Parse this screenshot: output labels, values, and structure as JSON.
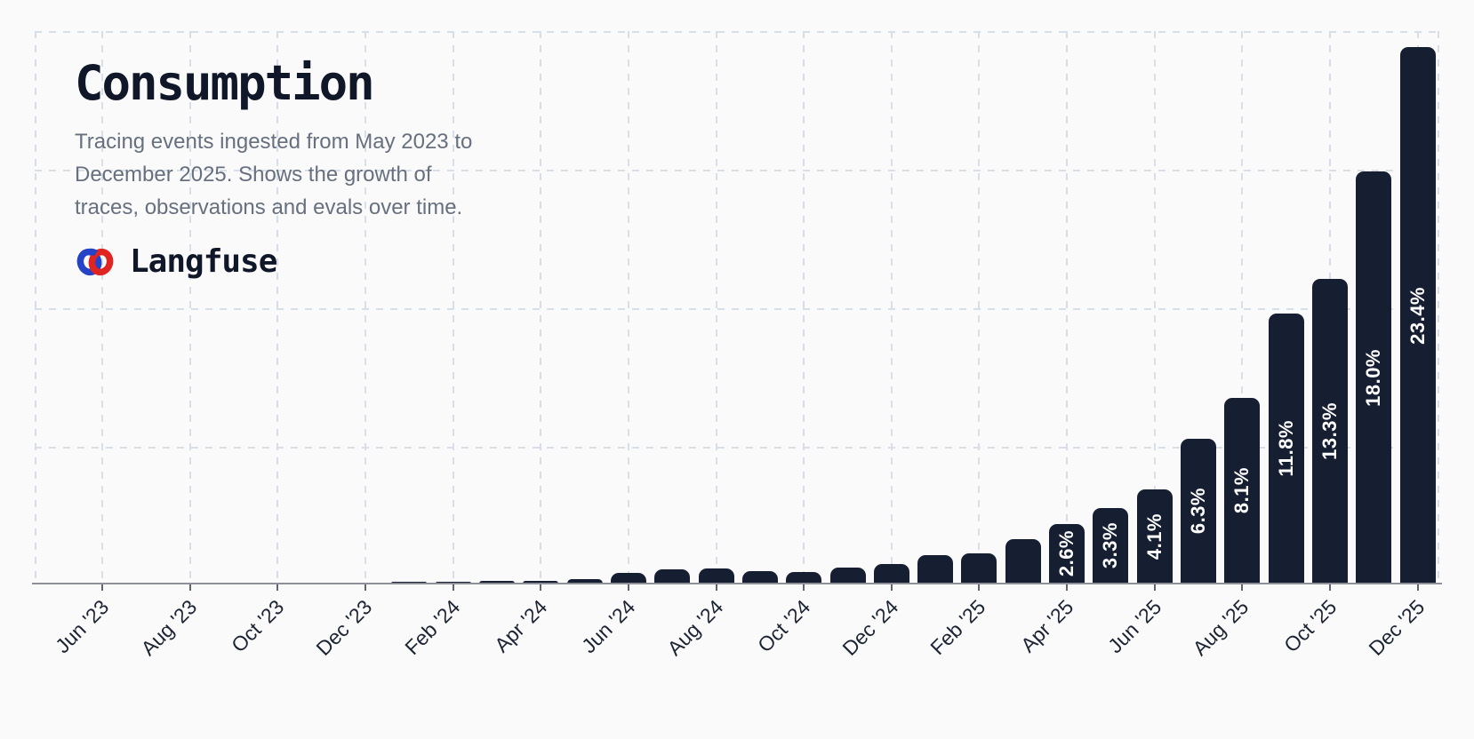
{
  "header": {
    "title": "Consumption",
    "subtitle_lines": [
      "Tracing events ingested from May 2023 to",
      "December 2025. Shows the growth of",
      "traces, observations and evals over time."
    ],
    "brand": "Langfuse"
  },
  "colors": {
    "background": "#fafafa",
    "bar": "#161e32",
    "label_on_bar": "#ffffff",
    "grid": "#d9dfe9",
    "axis": "#8d9099",
    "tick": "#5f6670",
    "tick_label": "#1c2433",
    "title": "#0f1728",
    "subtitle": "#66707f",
    "brand_red": "#e02421",
    "brand_blue": "#2443c6"
  },
  "chart_data": {
    "type": "bar",
    "title": "Consumption",
    "description": "Tracing events ingested from May 2023 to December 2025. Shows the growth of traces, observations and evals over time.",
    "unit": "%",
    "ylim": [
      0,
      24
    ],
    "grid": "dashed",
    "x_tick_labels": [
      "Jun '23",
      "Aug '23",
      "Oct '23",
      "Dec '23",
      "Feb '24",
      "Apr '24",
      "Jun '24",
      "Aug '24",
      "Oct '24",
      "Dec '24",
      "Feb '25",
      "Apr '25",
      "Jun '25",
      "Aug '25",
      "Oct '25",
      "Dec '25"
    ],
    "points": [
      {
        "month": "May '23",
        "value": 0.01,
        "label": ""
      },
      {
        "month": "Jun '23",
        "value": 0.01,
        "label": ""
      },
      {
        "month": "Jul '23",
        "value": 0.02,
        "label": ""
      },
      {
        "month": "Aug '23",
        "value": 0.02,
        "label": ""
      },
      {
        "month": "Sep '23",
        "value": 0.03,
        "label": ""
      },
      {
        "month": "Oct '23",
        "value": 0.03,
        "label": ""
      },
      {
        "month": "Nov '23",
        "value": 0.04,
        "label": ""
      },
      {
        "month": "Dec '23",
        "value": 0.05,
        "label": ""
      },
      {
        "month": "Jan '24",
        "value": 0.06,
        "label": ""
      },
      {
        "month": "Feb '24",
        "value": 0.08,
        "label": ""
      },
      {
        "month": "Mar '24",
        "value": 0.1,
        "label": ""
      },
      {
        "month": "Apr '24",
        "value": 0.13,
        "label": ""
      },
      {
        "month": "May '24",
        "value": 0.2,
        "label": ""
      },
      {
        "month": "Jun '24",
        "value": 0.45,
        "label": ""
      },
      {
        "month": "Jul '24",
        "value": 0.62,
        "label": ""
      },
      {
        "month": "Aug '24",
        "value": 0.65,
        "label": ""
      },
      {
        "month": "Sep '24",
        "value": 0.55,
        "label": ""
      },
      {
        "month": "Oct '24",
        "value": 0.5,
        "label": ""
      },
      {
        "month": "Nov '24",
        "value": 0.68,
        "label": ""
      },
      {
        "month": "Dec '24",
        "value": 0.85,
        "label": ""
      },
      {
        "month": "Jan '25",
        "value": 1.25,
        "label": ""
      },
      {
        "month": "Feb '25",
        "value": 1.3,
        "label": ""
      },
      {
        "month": "Mar '25",
        "value": 1.95,
        "label": ""
      },
      {
        "month": "Apr '25",
        "value": 2.6,
        "label": "2.6%"
      },
      {
        "month": "May '25",
        "value": 3.3,
        "label": "3.3%"
      },
      {
        "month": "Jun '25",
        "value": 4.1,
        "label": "4.1%"
      },
      {
        "month": "Jul '25",
        "value": 6.3,
        "label": "6.3%"
      },
      {
        "month": "Aug '25",
        "value": 8.1,
        "label": "8.1%"
      },
      {
        "month": "Sep '25",
        "value": 11.8,
        "label": "11.8%"
      },
      {
        "month": "Oct '25",
        "value": 13.3,
        "label": "13.3%"
      },
      {
        "month": "Nov '25",
        "value": 18.0,
        "label": "18.0%"
      },
      {
        "month": "Dec '25",
        "value": 23.4,
        "label": "23.4%"
      }
    ]
  }
}
